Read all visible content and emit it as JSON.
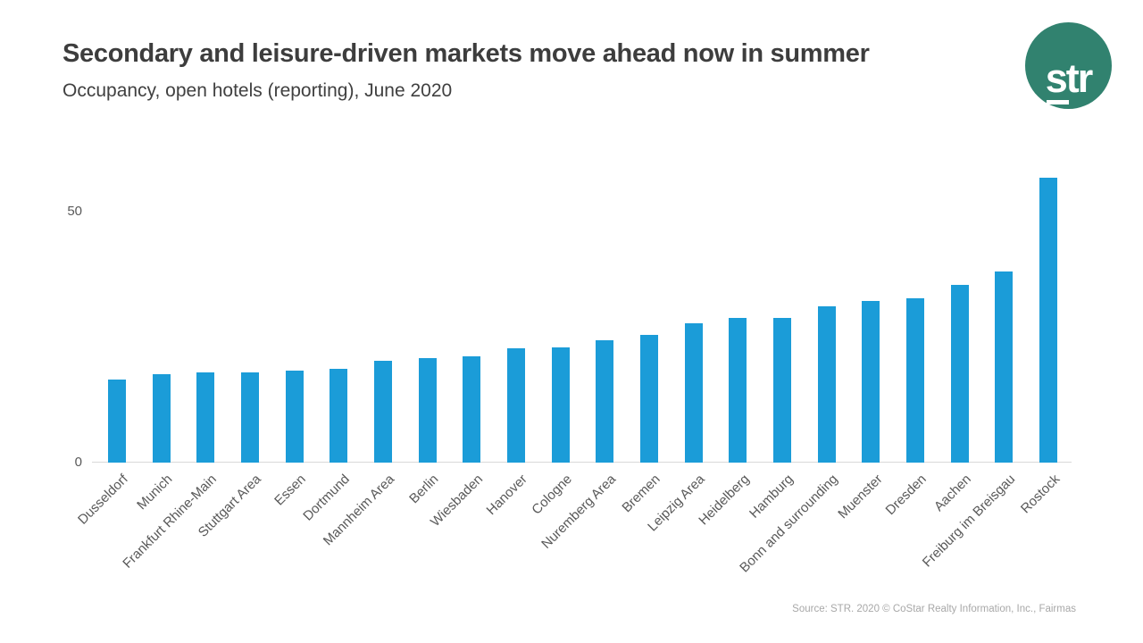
{
  "slide": {
    "title": "Secondary and leisure-driven markets move ahead now in summer",
    "subtitle": "Occupancy, open hotels (reporting), June 2020",
    "source": "Source: STR. 2020 © CoStar Realty Information, Inc., Fairmas",
    "logo_text": "str"
  },
  "colors": {
    "bar": "#1b9cd8",
    "logo_circle": "#31826f",
    "title_text": "#3d3d3d",
    "tick_text": "#595959",
    "axis_line": "#d9d9d9",
    "source_text": "#a8a8a8"
  },
  "chart_data": {
    "type": "bar",
    "title": "Secondary and leisure-driven markets move ahead now in summer",
    "subtitle": "Occupancy, open hotels (reporting), June 2020",
    "categories": [
      "Dusseldorf",
      "Munich",
      "Frankfurt Rhine-Main",
      "Stuttgart Area",
      "Essen",
      "Dortmund",
      "Mannheim Area",
      "Berlin",
      "Wiesbaden",
      "Hanover",
      "Cologne",
      "Nuremberg Area",
      "Bremen",
      "Leipzig Area",
      "Heidelberg",
      "Hamburg",
      "Bonn and surrounding",
      "Muenster",
      "Dresden",
      "Aachen",
      "Freiburg im Breisgau",
      "Rostock"
    ],
    "values": [
      16.5,
      17.6,
      18.0,
      18.0,
      18.3,
      18.7,
      20.2,
      20.8,
      21.1,
      22.7,
      22.9,
      24.3,
      25.4,
      27.8,
      28.8,
      28.8,
      31.2,
      32.2,
      32.7,
      35.4,
      38.1,
      56.7
    ],
    "xlabel": "",
    "ylabel": "",
    "yticks": [
      0,
      50
    ],
    "ylim": [
      0,
      60
    ],
    "grid": false,
    "legend": false,
    "bar_color": "#1b9cd8"
  }
}
